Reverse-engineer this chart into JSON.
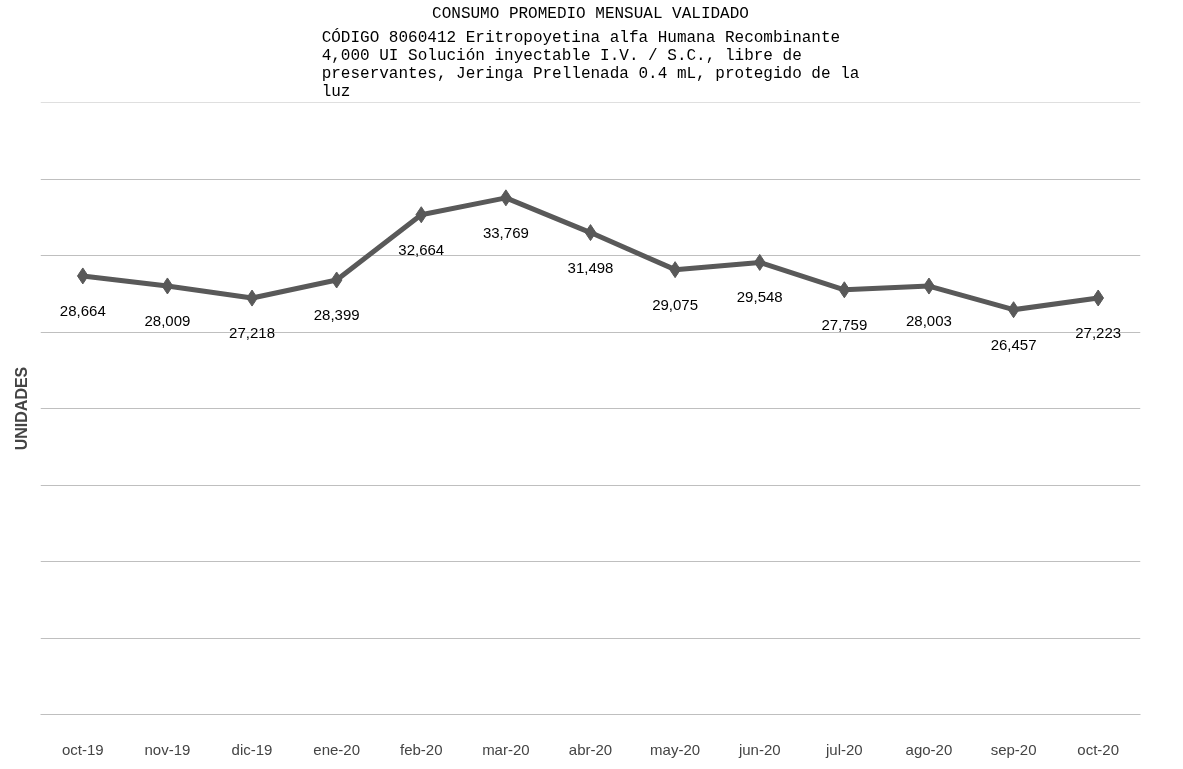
{
  "chart_data": {
    "type": "line",
    "title": "CONSUMO PROMEDIO MENSUAL VALIDADO",
    "subtitle": "CÓDIGO 8060412 Eritropoyetina alfa Humana Recombinante 4,000 UI Solución inyectable I.V. / S.C., libre de preservantes, Jeringa Prellenada 0.4 mL, protegido de la luz",
    "ylabel": "UNIDADES",
    "categories": [
      "oct-19",
      "nov-19",
      "dic-19",
      "ene-20",
      "feb-20",
      "mar-20",
      "abr-20",
      "may-20",
      "jun-20",
      "jul-20",
      "ago-20",
      "sep-20",
      "oct-20"
    ],
    "series": [
      {
        "color": "#595959",
        "values": [
          28664,
          28009,
          27218,
          28399,
          32664,
          33769,
          31498,
          29075,
          29548,
          27759,
          28003,
          26457,
          27223
        ],
        "value_labels": [
          "28,664",
          "28,009",
          "27,218",
          "28,399",
          "32,664",
          "33,769",
          "31,498",
          "29,075",
          "29,548",
          "27,759",
          "28,003",
          "26,457",
          "27,223"
        ]
      }
    ],
    "ylim": [
      0,
      40000
    ],
    "yticks": [
      {
        "value": 0,
        "label": null
      },
      {
        "value": 5000,
        "label": null
      },
      {
        "value": 10000,
        "label": null
      },
      {
        "value": 15000,
        "label": null
      },
      {
        "value": 20000,
        "label": null
      },
      {
        "value": 25000,
        "label": null
      },
      {
        "value": 30000,
        "label": null
      },
      {
        "value": 35000,
        "label": null
      },
      {
        "value": 40000,
        "label": null
      }
    ],
    "tick_labels": "x",
    "grid": "y",
    "marker": "diamond",
    "line_style": "solid"
  }
}
